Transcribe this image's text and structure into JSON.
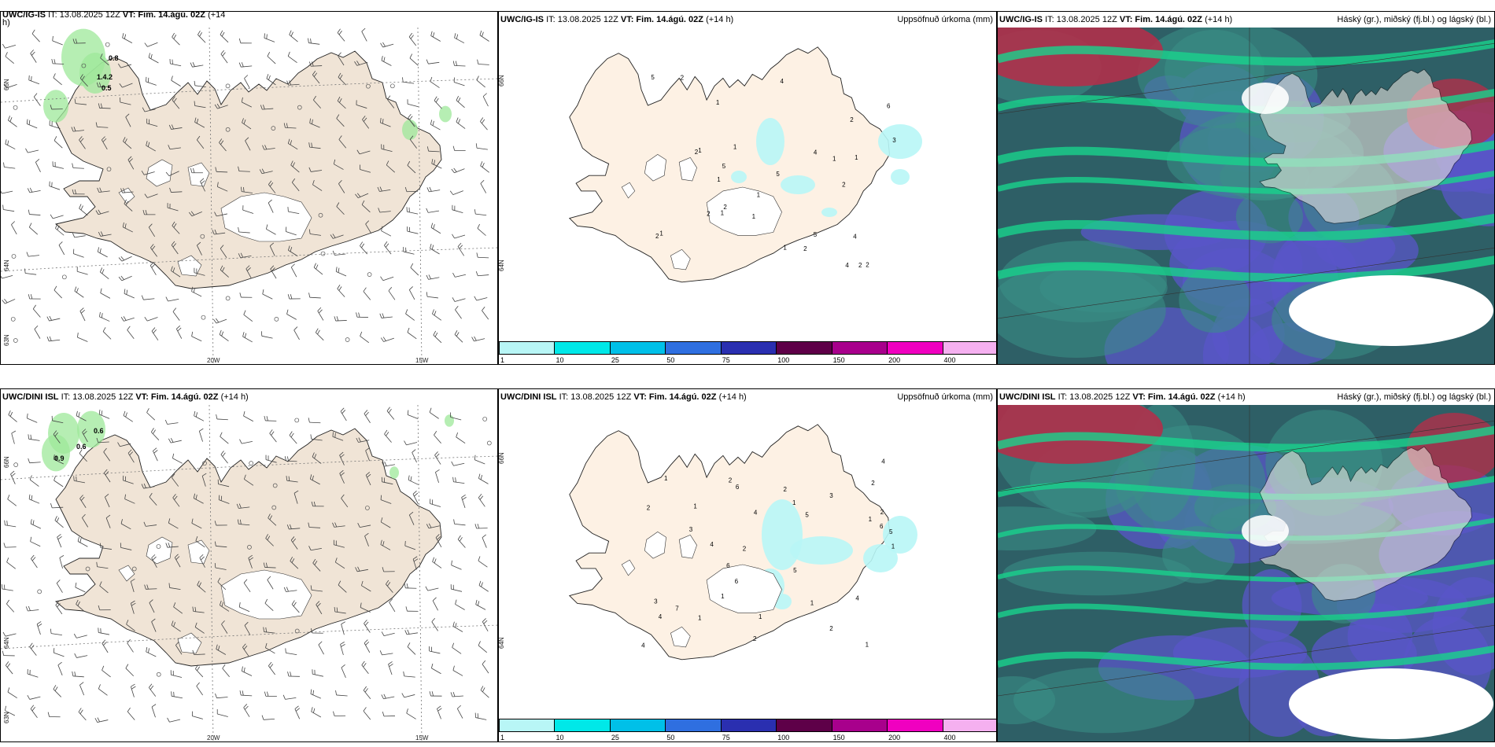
{
  "rows": [
    {
      "model": "UWC/IG-IS",
      "run_prefix": "IT: 13.08.2025 12Z",
      "valid": "VT: Fim. 14.ágú. 02Z",
      "lead": "(+14 h)",
      "wind_panel": {
        "title_model": "UWC/IG-IS",
        "title_rest": "IT: 13.08.2025 12Z",
        "title_valid": "VT: Fim. 14.ágú. 02Z",
        "title_lead": "(+14",
        "title_lead2": "h)",
        "lat_labels": [
          "66N",
          "64N",
          "63N"
        ],
        "lon_labels": [
          "20W",
          "15W"
        ],
        "precip_values": [
          "0.8",
          "1.4.2",
          "0.5"
        ]
      },
      "precip_panel": {
        "subtitle": "Uppsöfnuð úrkoma (mm)",
        "lat_labels": [
          "66N",
          "64N"
        ],
        "values": [
          "1",
          "2",
          "2",
          "2",
          "2",
          "1",
          "1",
          "1",
          "1",
          "1",
          "1",
          "4",
          "5",
          "4",
          "5",
          "5",
          "5",
          "3",
          "6",
          "1",
          "2",
          "1",
          "2",
          "2",
          "4",
          "4",
          "1",
          "1",
          "2",
          "2",
          "2"
        ]
      },
      "cloud_panel": {
        "subtitle": "Háský (gr.), miðský (fj.bl.) og lágský (bl.)"
      }
    },
    {
      "model": "UWC/DINI ISL",
      "run_prefix": "IT: 13.08.2025 12Z",
      "valid": "VT: Fim. 14.ágú. 02Z",
      "lead": "(+14 h)",
      "wind_panel": {
        "title_model": "UWC/DINI ISL",
        "title_rest": "IT: 13.08.2025 12Z",
        "title_valid": "VT: Fim. 14.ágú. 02Z",
        "title_lead": "(+14 h)",
        "lat_labels": [
          "66N",
          "64N",
          "63N"
        ],
        "lon_labels": [
          "20W",
          "15W"
        ],
        "precip_values": [
          "0.6",
          "0.6",
          "0.9"
        ]
      },
      "precip_panel": {
        "subtitle": "Uppsöfnuð úrkoma (mm)",
        "lat_labels": [
          "66N",
          "64N"
        ],
        "values": [
          "1",
          "2",
          "1",
          "1",
          "1",
          "1",
          "2",
          "2",
          "4",
          "4",
          "7",
          "6",
          "6",
          "1",
          "1",
          "1",
          "6",
          "5",
          "5",
          "5",
          "3",
          "2",
          "2",
          "1",
          "4",
          "6",
          "2",
          "4",
          "3",
          "4",
          "2",
          "3",
          "4",
          "1",
          "2"
        ]
      },
      "cloud_panel": {
        "subtitle": "Háský (gr.), miðský (fj.bl.) og lágský (bl.)"
      }
    }
  ],
  "legend": {
    "ticks": [
      "1",
      "10",
      "25",
      "50",
      "75",
      "100",
      "150",
      "200",
      "400"
    ],
    "colors": [
      "#b8f6f6",
      "#00e8e8",
      "#00c0e8",
      "#2f6fe0",
      "#2a2fb0",
      "#5e0048",
      "#a8008c",
      "#f000c0",
      "#f5b0f0"
    ]
  },
  "colors": {
    "land_wind": "#f0e4d6",
    "land_precip": "#fdf1e4",
    "precip_green": "#9ee89a",
    "precip_cyan": "#b8f6f6"
  }
}
